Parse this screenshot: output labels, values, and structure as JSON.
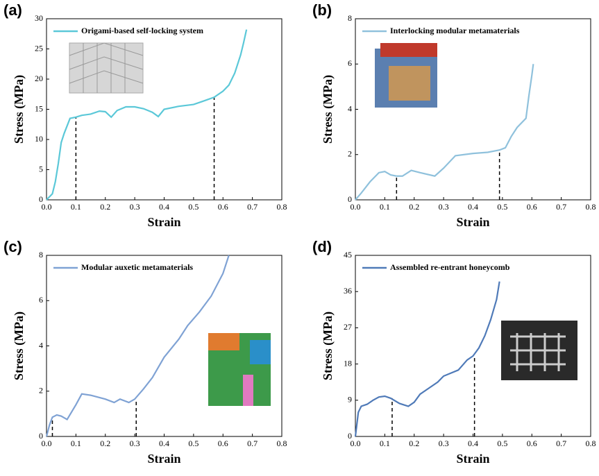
{
  "chart_data": [
    {
      "type": "line",
      "panel_label": "(a)",
      "xlabel": "Strain",
      "ylabel": "Stress (MPa)",
      "x": [
        0,
        0.02,
        0.03,
        0.04,
        0.05,
        0.06,
        0.08,
        0.1,
        0.12,
        0.15,
        0.18,
        0.2,
        0.22,
        0.24,
        0.27,
        0.3,
        0.33,
        0.36,
        0.38,
        0.4,
        0.45,
        0.5,
        0.53,
        0.57,
        0.6,
        0.62,
        0.64,
        0.66,
        0.67,
        0.68
      ],
      "series": [
        {
          "name": "Origami-based self-locking system",
          "color": "#5bc8d8",
          "values": [
            0,
            1,
            3,
            6,
            9.5,
            11,
            13.5,
            13.7,
            14,
            14.2,
            14.7,
            14.6,
            13.7,
            14.8,
            15.4,
            15.4,
            15.1,
            14.5,
            13.8,
            15,
            15.5,
            15.8,
            16.3,
            17,
            18,
            19,
            21,
            24,
            26,
            28.2
          ]
        }
      ],
      "markers": [
        {
          "x": 0.1,
          "y": 13.7
        },
        {
          "x": 0.57,
          "y": 17
        }
      ],
      "xlim": [
        0,
        0.8
      ],
      "xticks": [
        {
          "value": 0,
          "label": "0.0"
        },
        0.1,
        0.2,
        0.3,
        0.4,
        0.5,
        0.6,
        0.7,
        0.8
      ],
      "ylim": [
        0,
        30
      ],
      "yticks": [
        0,
        5,
        10,
        15,
        20,
        25,
        30
      ]
    },
    {
      "type": "line",
      "panel_label": "(b)",
      "xlabel": "Strain",
      "ylabel": "Stress (MPa)",
      "x": [
        0,
        0.02,
        0.05,
        0.08,
        0.1,
        0.12,
        0.14,
        0.16,
        0.19,
        0.22,
        0.27,
        0.3,
        0.34,
        0.4,
        0.45,
        0.49,
        0.51,
        0.53,
        0.55,
        0.58,
        0.59,
        0.6,
        0.605
      ],
      "series": [
        {
          "name": "Interlocking modular metamaterials",
          "color": "#8fc1dc",
          "values": [
            0,
            0.3,
            0.8,
            1.2,
            1.25,
            1.1,
            1.05,
            1.05,
            1.3,
            1.2,
            1.05,
            1.4,
            1.95,
            2.05,
            2.1,
            2.2,
            2.3,
            2.8,
            3.2,
            3.6,
            4.6,
            5.5,
            6
          ]
        }
      ],
      "markers": [
        {
          "x": 0.14,
          "y": 1.05
        },
        {
          "x": 0.49,
          "y": 2.2
        }
      ],
      "xlim": [
        0,
        0.8
      ],
      "xticks": [
        {
          "value": 0,
          "label": "0.0"
        },
        0.1,
        0.2,
        0.3,
        0.4,
        0.5,
        0.6,
        0.7,
        0.8
      ],
      "ylim": [
        0,
        8
      ],
      "yticks": [
        0,
        2,
        4,
        6,
        8
      ]
    },
    {
      "type": "line",
      "panel_label": "(c)",
      "xlabel": "Strain",
      "ylabel": "Stress (MPa)",
      "x": [
        0,
        0.01,
        0.02,
        0.035,
        0.05,
        0.07,
        0.1,
        0.12,
        0.15,
        0.2,
        0.23,
        0.25,
        0.28,
        0.3,
        0.33,
        0.36,
        0.4,
        0.45,
        0.48,
        0.52,
        0.56,
        0.6,
        0.62
      ],
      "series": [
        {
          "name": "Modular auxetic metamaterials",
          "color": "#7fa2d4",
          "values": [
            0,
            0.5,
            0.85,
            0.95,
            0.9,
            0.75,
            1.4,
            1.88,
            1.82,
            1.65,
            1.5,
            1.65,
            1.5,
            1.65,
            2.1,
            2.6,
            3.5,
            4.3,
            4.9,
            5.5,
            6.2,
            7.2,
            8
          ]
        }
      ],
      "markers": [
        {
          "x": 0.02,
          "y": 0.85
        },
        {
          "x": 0.305,
          "y": 1.65
        }
      ],
      "xlim": [
        0,
        0.8
      ],
      "xticks": [
        {
          "value": 0,
          "label": "0.0"
        },
        0.1,
        0.2,
        0.3,
        0.4,
        0.5,
        0.6,
        0.7,
        0.8
      ],
      "ylim": [
        0,
        8
      ],
      "yticks": [
        0,
        2,
        4,
        6,
        8
      ]
    },
    {
      "type": "line",
      "panel_label": "(d)",
      "xlabel": "Strain",
      "ylabel": "Stress (MPa)",
      "x": [
        0,
        0.01,
        0.02,
        0.04,
        0.06,
        0.08,
        0.1,
        0.12,
        0.15,
        0.18,
        0.2,
        0.22,
        0.25,
        0.28,
        0.3,
        0.35,
        0.38,
        0.4,
        0.42,
        0.44,
        0.46,
        0.48,
        0.49
      ],
      "series": [
        {
          "name": "Assembled re-entrant honeycomb",
          "color": "#4f7ab8",
          "values": [
            0,
            6,
            7.5,
            8,
            9,
            9.8,
            10,
            9.5,
            8.2,
            7.5,
            8.5,
            10.5,
            12,
            13.5,
            15,
            16.5,
            19,
            20,
            22,
            25,
            29,
            34,
            38.5
          ]
        }
      ],
      "markers": [
        {
          "x": 0.125,
          "y": 9.5
        },
        {
          "x": 0.405,
          "y": 20
        }
      ],
      "xlim": [
        0,
        0.8
      ],
      "xticks": [
        {
          "value": 0,
          "label": "0.0"
        },
        0.1,
        0.2,
        0.3,
        0.4,
        0.5,
        0.6,
        0.7,
        0.8
      ],
      "ylim": [
        0,
        45
      ],
      "yticks": [
        0,
        9,
        18,
        27,
        36,
        45
      ]
    }
  ]
}
